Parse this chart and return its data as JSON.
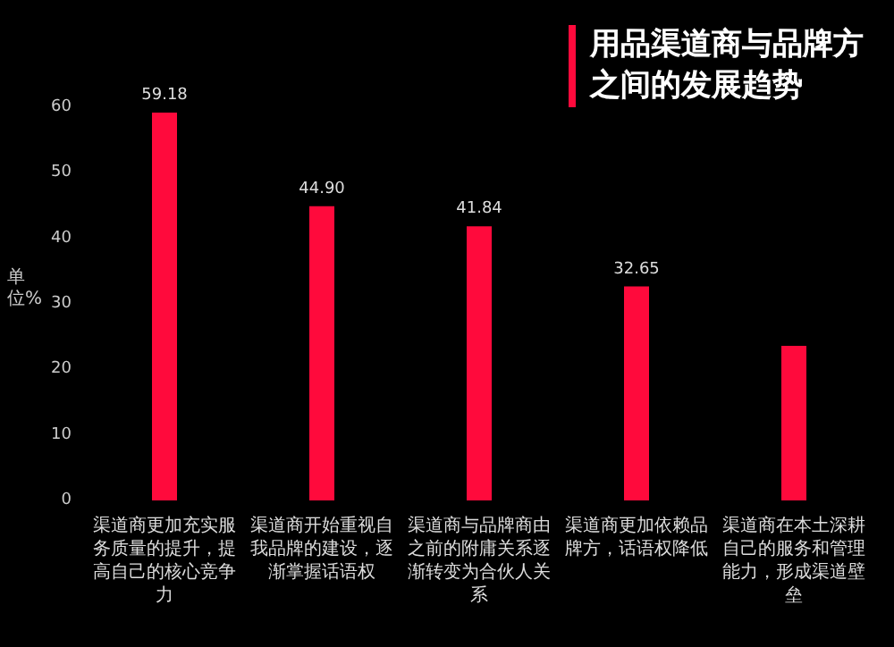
{
  "chart_data": {
    "type": "bar",
    "title": "用品渠道商与品牌方之间的发展趋势",
    "ylabel": "单位%",
    "categories": [
      "渠道商更加充实服务质量的提升，提高自己的核心竞争力",
      "渠道商开始重视自我品牌的建设，逐渐掌握话语权",
      "渠道商与品牌商由之前的附庸关系逐渐转变为合伙人关系",
      "渠道商更加依赖品牌方，话语权降低",
      "渠道商在本土深耕自己的服务和管理能力，形成渠道壁垒"
    ],
    "values": [
      59.18,
      44.9,
      41.84,
      32.65,
      23.6
    ],
    "value_labels": [
      "59.18",
      "44.90",
      "41.84",
      "32.65",
      null
    ],
    "color": "#ff0a3c",
    "ylim": [
      0,
      60
    ],
    "yticks": [
      0,
      10,
      20,
      30,
      40,
      50,
      60
    ],
    "grid": false
  }
}
